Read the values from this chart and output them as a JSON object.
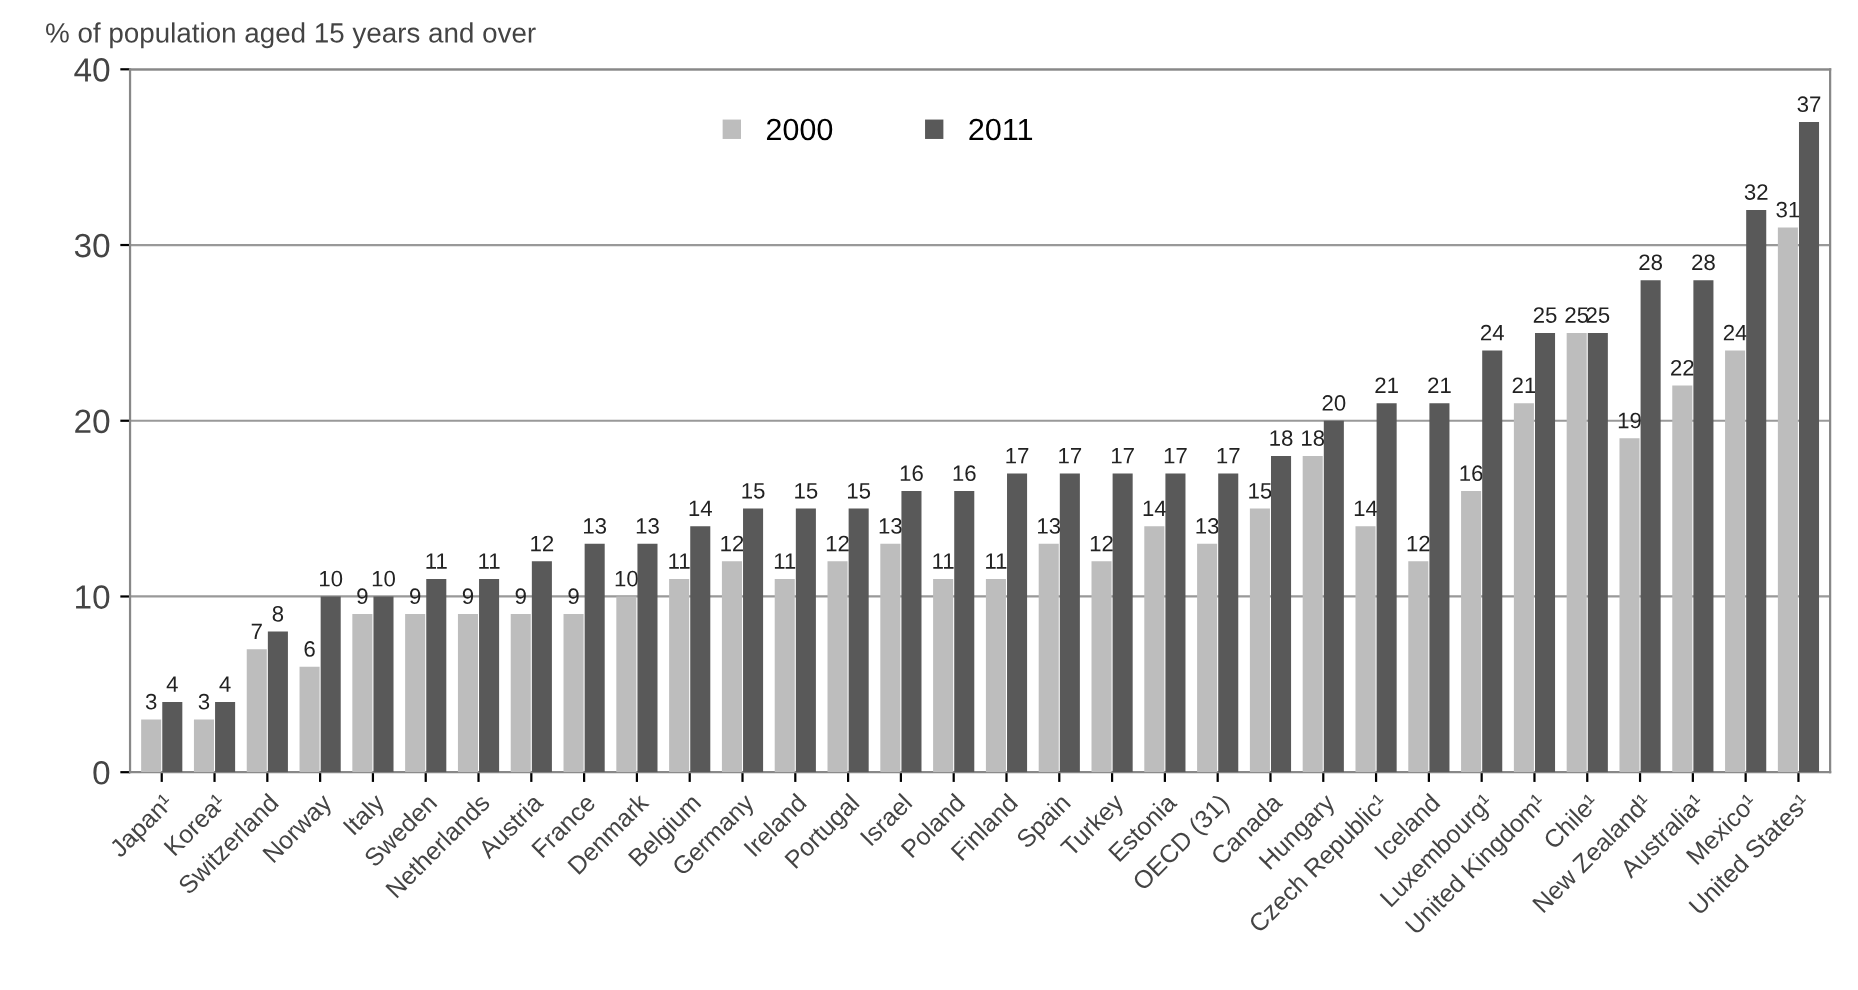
{
  "chart_data": {
    "type": "bar",
    "ylabel": "% of population aged 15 years and over",
    "categories": [
      "Japan¹",
      "Korea¹",
      "Switzerland",
      "Norway",
      "Italy",
      "Sweden",
      "Netherlands",
      "Austria",
      "France",
      "Denmark",
      "Belgium",
      "Germany",
      "Ireland",
      "Portugal",
      "Israel",
      "Poland",
      "Finland",
      "Spain",
      "Turkey",
      "Estonia",
      "OECD (31)",
      "Canada",
      "Hungary",
      "Czech Republic¹",
      "Iceland",
      "Luxembourg¹",
      "United Kingdom¹",
      "Chile¹",
      "New Zealand¹",
      "Australia¹",
      "Mexico¹",
      "United States¹"
    ],
    "series": [
      {
        "name": "2000",
        "color": "#bdbdbd",
        "values": [
          3,
          3,
          7,
          6,
          9,
          9,
          9,
          9,
          9,
          10,
          11,
          12,
          11,
          12,
          13,
          11,
          11,
          13,
          12,
          14,
          13,
          15,
          18,
          14,
          12,
          16,
          21,
          25,
          19,
          22,
          24,
          31
        ]
      },
      {
        "name": "2011",
        "color": "#595959",
        "values": [
          4,
          4,
          8,
          10,
          10,
          11,
          11,
          12,
          13,
          13,
          14,
          15,
          15,
          15,
          16,
          16,
          17,
          17,
          17,
          17,
          17,
          18,
          20,
          21,
          21,
          24,
          25,
          25,
          28,
          28,
          32,
          37
        ]
      }
    ],
    "ylim": [
      0,
      40
    ],
    "yticks": [
      0,
      10,
      20,
      30,
      40
    ],
    "grid": "y",
    "legend": "top",
    "data_labels": true
  }
}
